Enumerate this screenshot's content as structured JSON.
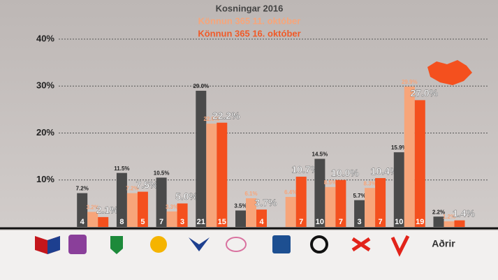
{
  "chart_data": {
    "type": "bar",
    "categories": [
      null,
      null,
      null,
      null,
      null,
      null,
      null,
      null,
      null,
      null,
      "Aðrir"
    ],
    "series": [
      {
        "name": "Kosningar 2016",
        "color": "#4a4a4a",
        "values": [
          null,
          7.2,
          11.5,
          10.5,
          29.0,
          3.5,
          null,
          14.5,
          5.7,
          15.9,
          2.2
        ],
        "value_labels": [
          null,
          "7.2%",
          "11.5%",
          "10.5%",
          "29.0%",
          "3.5%",
          null,
          "14.5%",
          "5.7%",
          "15.9%",
          "2.2%"
        ],
        "seats": [
          null,
          4,
          8,
          7,
          21,
          null,
          null,
          10,
          3,
          10,
          null
        ]
      },
      {
        "name": "Könnun 365 11. október",
        "color": "#f7a57a",
        "values": [
          null,
          3.2,
          7.2,
          3.3,
          22.0,
          6.1,
          6.4,
          8.5,
          8.3,
          29.9,
          1.2
        ],
        "value_labels": [
          null,
          "3.2%",
          "7.2%",
          "3.3%",
          "22.0%",
          "6.1%",
          "6.4%",
          "8.5%",
          "8.3%",
          "29.9%",
          "1.2%"
        ],
        "seats": [
          null,
          null,
          null,
          null,
          null,
          null,
          null,
          null,
          null,
          null,
          null
        ]
      },
      {
        "name": "Könnun 365 16. október",
        "color": "#f4501e",
        "values": [
          null,
          2.1,
          7.5,
          5.0,
          22.2,
          3.7,
          10.7,
          10.0,
          10.4,
          27.0,
          1.4
        ],
        "value_labels": [
          null,
          "2.1%",
          "7.5%",
          "5.0%",
          "22.2%",
          "3.7%",
          "10.7%",
          "10.0%",
          "10.4%",
          "27.0%",
          "1.4%"
        ],
        "seats": [
          null,
          null,
          5,
          3,
          15,
          4,
          7,
          7,
          7,
          19,
          null
        ]
      }
    ],
    "ylim": [
      0,
      40
    ],
    "yticks": [
      {
        "value": 10,
        "label": "10%"
      },
      {
        "value": 20,
        "label": "20%"
      },
      {
        "value": 30,
        "label": "30%"
      },
      {
        "value": 40,
        "label": "40%"
      }
    ],
    "grid": true
  }
}
